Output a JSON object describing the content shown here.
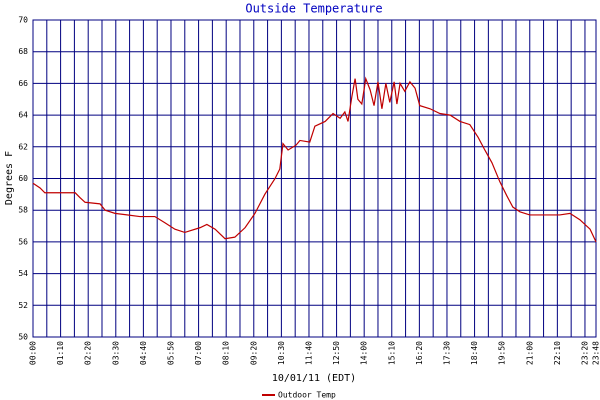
{
  "chart_data": {
    "type": "line",
    "title": "Outside Temperature",
    "xlabel": "10/01/11 (EDT)",
    "ylabel": "Degrees F",
    "x": [
      0,
      18,
      30,
      107,
      119,
      132,
      170,
      183,
      208,
      271,
      309,
      335,
      360,
      385,
      424,
      441,
      462,
      487,
      512,
      538,
      563,
      588,
      614,
      626,
      634,
      647,
      667,
      677,
      702,
      715,
      741,
      761,
      779,
      791,
      799,
      809,
      817,
      824,
      834,
      844,
      855,
      865,
      875,
      885,
      895,
      905,
      916,
      923,
      931,
      943,
      956,
      969,
      981,
      1007,
      1032,
      1058,
      1083,
      1108,
      1129,
      1146,
      1164,
      1184,
      1202,
      1217,
      1235,
      1260,
      1286,
      1336,
      1362,
      1387,
      1413,
      1428
    ],
    "series": [
      {
        "name": "Outdoor Temp",
        "color": "#c00000",
        "values": [
          59.7,
          59.4,
          59.1,
          59.1,
          58.8,
          58.5,
          58.4,
          58.0,
          57.8,
          57.6,
          57.6,
          57.2,
          56.8,
          56.6,
          56.9,
          57.1,
          56.8,
          56.2,
          56.3,
          56.9,
          57.8,
          59.0,
          60.0,
          60.6,
          62.2,
          61.8,
          62.1,
          62.4,
          62.3,
          63.3,
          63.6,
          64.1,
          63.8,
          64.2,
          63.6,
          65.2,
          66.3,
          65.0,
          64.7,
          66.3,
          65.6,
          64.6,
          66.1,
          64.4,
          66.0,
          64.8,
          66.1,
          64.7,
          66.0,
          65.5,
          66.1,
          65.7,
          64.6,
          64.4,
          64.1,
          64.0,
          63.6,
          63.4,
          62.6,
          61.8,
          61.0,
          59.8,
          58.9,
          58.2,
          57.9,
          57.7,
          57.7,
          57.7,
          57.8,
          57.4,
          56.8,
          56.0
        ]
      }
    ],
    "xlim": [
      0,
      1428
    ],
    "xticks": [
      {
        "value": 0,
        "label": "00:00"
      },
      {
        "value": 70,
        "label": "01:10"
      },
      {
        "value": 140,
        "label": "02:20"
      },
      {
        "value": 210,
        "label": "03:30"
      },
      {
        "value": 280,
        "label": "04:40"
      },
      {
        "value": 350,
        "label": "05:50"
      },
      {
        "value": 420,
        "label": "07:00"
      },
      {
        "value": 490,
        "label": "08:10"
      },
      {
        "value": 560,
        "label": "09:20"
      },
      {
        "value": 630,
        "label": "10:30"
      },
      {
        "value": 700,
        "label": "11:40"
      },
      {
        "value": 770,
        "label": "12:50"
      },
      {
        "value": 840,
        "label": "14:00"
      },
      {
        "value": 910,
        "label": "15:10"
      },
      {
        "value": 980,
        "label": "16:20"
      },
      {
        "value": 1050,
        "label": "17:30"
      },
      {
        "value": 1120,
        "label": "18:40"
      },
      {
        "value": 1190,
        "label": "19:50"
      },
      {
        "value": 1260,
        "label": "21:00"
      },
      {
        "value": 1330,
        "label": "22:10"
      },
      {
        "value": 1400,
        "label": "23:20"
      },
      {
        "value": 1428,
        "label": "23:48"
      }
    ],
    "xgrid": [
      35,
      105,
      175,
      245,
      315,
      385,
      455,
      525,
      595,
      665,
      735,
      805,
      875,
      945,
      1015,
      1085,
      1155,
      1225,
      1295,
      1365
    ],
    "ylim": [
      50,
      70
    ],
    "yticks": [
      50,
      52,
      54,
      56,
      58,
      60,
      62,
      64,
      66,
      68,
      70
    ],
    "grid": true,
    "grid_color": "#000080"
  }
}
